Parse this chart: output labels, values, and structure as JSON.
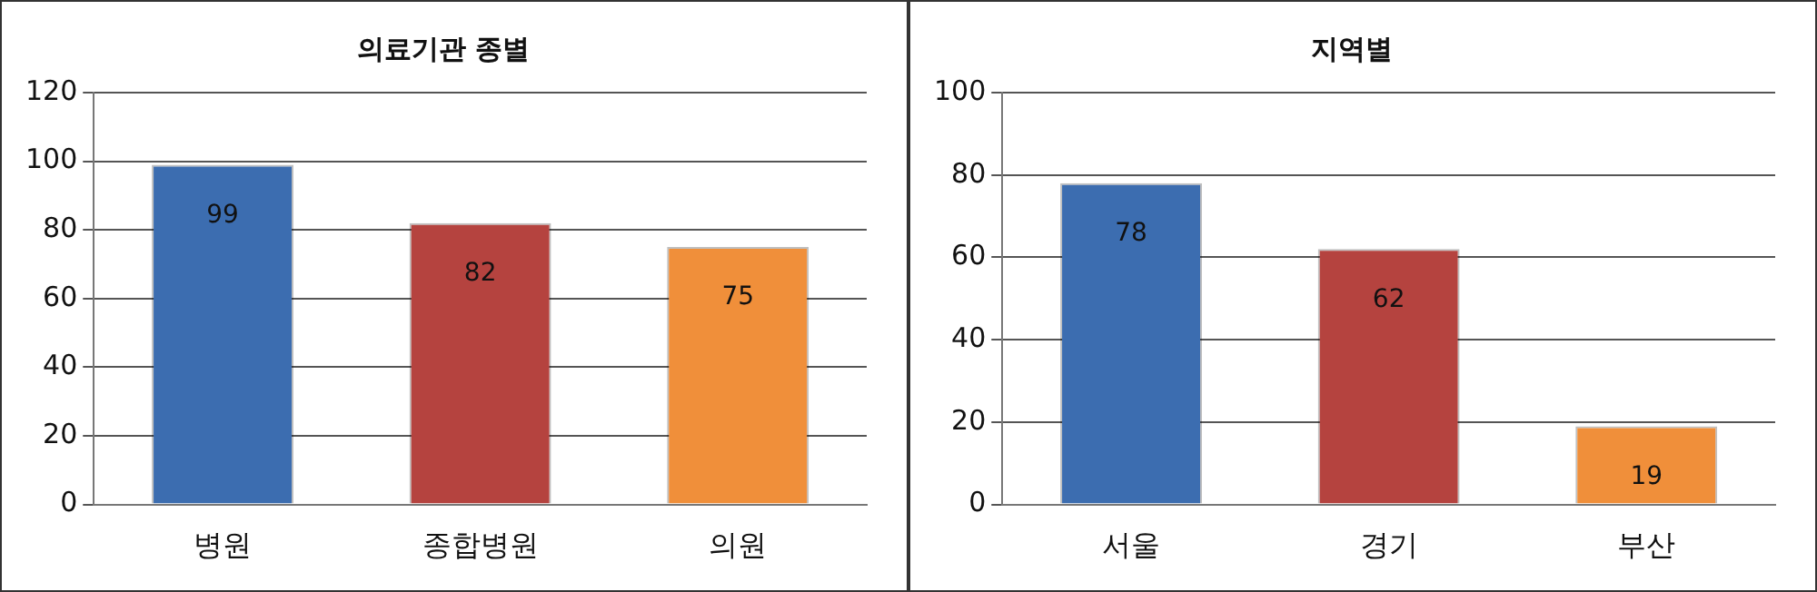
{
  "chart_data": [
    {
      "type": "bar",
      "title": "의료기관 종별",
      "categories": [
        "병원",
        "종합병원",
        "의원"
      ],
      "values": [
        99,
        82,
        75
      ],
      "colors": [
        "#3c6db0",
        "#b5433f",
        "#f08f3a"
      ],
      "ylim": [
        0,
        120
      ],
      "yticks": [
        0,
        20,
        40,
        60,
        80,
        100,
        120
      ],
      "grid": "y",
      "data_labels": true
    },
    {
      "type": "bar",
      "title": "지역별",
      "categories": [
        "서울",
        "경기",
        "부산"
      ],
      "values": [
        78,
        62,
        19
      ],
      "colors": [
        "#3c6db0",
        "#b5433f",
        "#f08f3a"
      ],
      "ylim": [
        0,
        100
      ],
      "yticks": [
        0,
        20,
        40,
        60,
        80,
        100
      ],
      "grid": "y",
      "data_labels": true
    }
  ]
}
